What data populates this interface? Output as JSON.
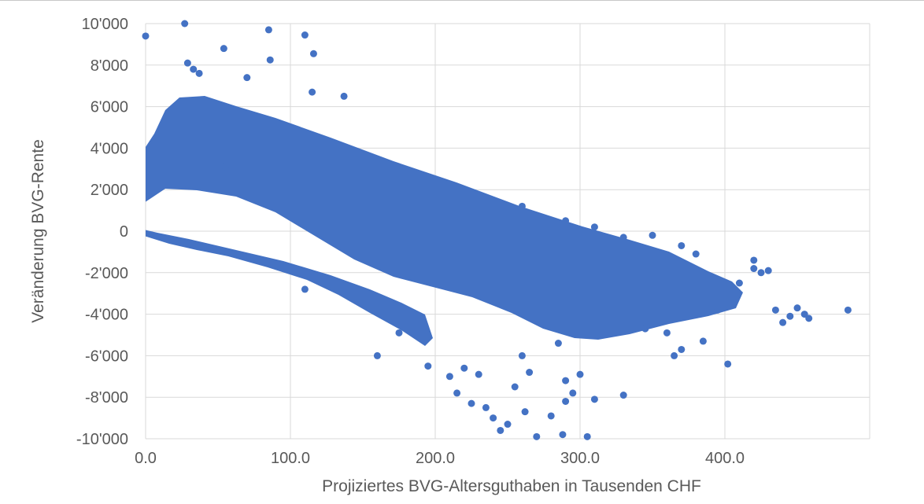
{
  "chart_data": {
    "type": "scatter",
    "title": "",
    "xlabel": "Projiziertes BVG-Altersguthaben in Tausenden CHF",
    "ylabel": "Veränderung BVG-Rente",
    "xlim": [
      0,
      500
    ],
    "ylim": [
      -10000,
      10000
    ],
    "x_ticks": [
      0,
      100,
      200,
      300,
      400
    ],
    "x_tick_labels": [
      "0.0",
      "100.0",
      "200.0",
      "300.0",
      "400.0"
    ],
    "y_ticks": [
      10000,
      8000,
      6000,
      4000,
      2000,
      0,
      -2000,
      -4000,
      -6000,
      -8000,
      -10000
    ],
    "y_tick_labels": [
      "10'000",
      "8'000",
      "6'000",
      "4'000",
      "2'000",
      "0",
      "-2'000",
      "-4'000",
      "-6'000",
      "-8'000",
      "-10'000"
    ],
    "grid": true,
    "legend": "none",
    "marker_color": "#4472C4",
    "series": [
      {
        "description_points": [
          [
            0,
            9400
          ],
          [
            27,
            10000
          ],
          [
            85,
            9700
          ],
          [
            110,
            9450
          ],
          [
            29,
            8100
          ],
          [
            33,
            7800
          ],
          [
            54,
            8800
          ],
          [
            116,
            8550
          ],
          [
            86,
            8250
          ],
          [
            70,
            7400
          ],
          [
            37,
            7600
          ],
          [
            137,
            6500
          ],
          [
            115,
            6700
          ],
          [
            55,
            3100
          ],
          [
            110,
            -2800
          ],
          [
            160,
            -6000
          ],
          [
            175,
            -4900
          ],
          [
            195,
            -6500
          ],
          [
            210,
            -7000
          ],
          [
            215,
            -7800
          ],
          [
            225,
            -8300
          ],
          [
            235,
            -8500
          ],
          [
            240,
            -9000
          ],
          [
            245,
            -9600
          ],
          [
            250,
            -9300
          ],
          [
            262,
            -8700
          ],
          [
            270,
            -9900
          ],
          [
            280,
            -8900
          ],
          [
            288,
            -9800
          ],
          [
            290,
            -8200
          ],
          [
            295,
            -7800
          ],
          [
            305,
            -9900
          ],
          [
            310,
            -8100
          ],
          [
            330,
            -7900
          ],
          [
            300,
            -6900
          ],
          [
            290,
            -7200
          ],
          [
            265,
            -6800
          ],
          [
            255,
            -7500
          ],
          [
            230,
            -6900
          ],
          [
            220,
            -6600
          ],
          [
            260,
            -6000
          ],
          [
            285,
            -5400
          ],
          [
            345,
            -4700
          ],
          [
            360,
            -4900
          ],
          [
            370,
            -5700
          ],
          [
            365,
            -6000
          ],
          [
            385,
            -5300
          ],
          [
            402,
            -6400
          ],
          [
            395,
            -3800
          ],
          [
            410,
            -2500
          ],
          [
            420,
            -1800
          ],
          [
            425,
            -2000
          ],
          [
            430,
            -1900
          ],
          [
            420,
            -1400
          ],
          [
            435,
            -3800
          ],
          [
            440,
            -4400
          ],
          [
            445,
            -4100
          ],
          [
            450,
            -3700
          ],
          [
            455,
            -4000
          ],
          [
            458,
            -4200
          ],
          [
            485,
            -3800
          ],
          [
            260,
            1200
          ],
          [
            290,
            500
          ],
          [
            310,
            200
          ],
          [
            330,
            -300
          ],
          [
            350,
            -200
          ],
          [
            370,
            -700
          ],
          [
            380,
            -1100
          ]
        ]
      }
    ]
  }
}
